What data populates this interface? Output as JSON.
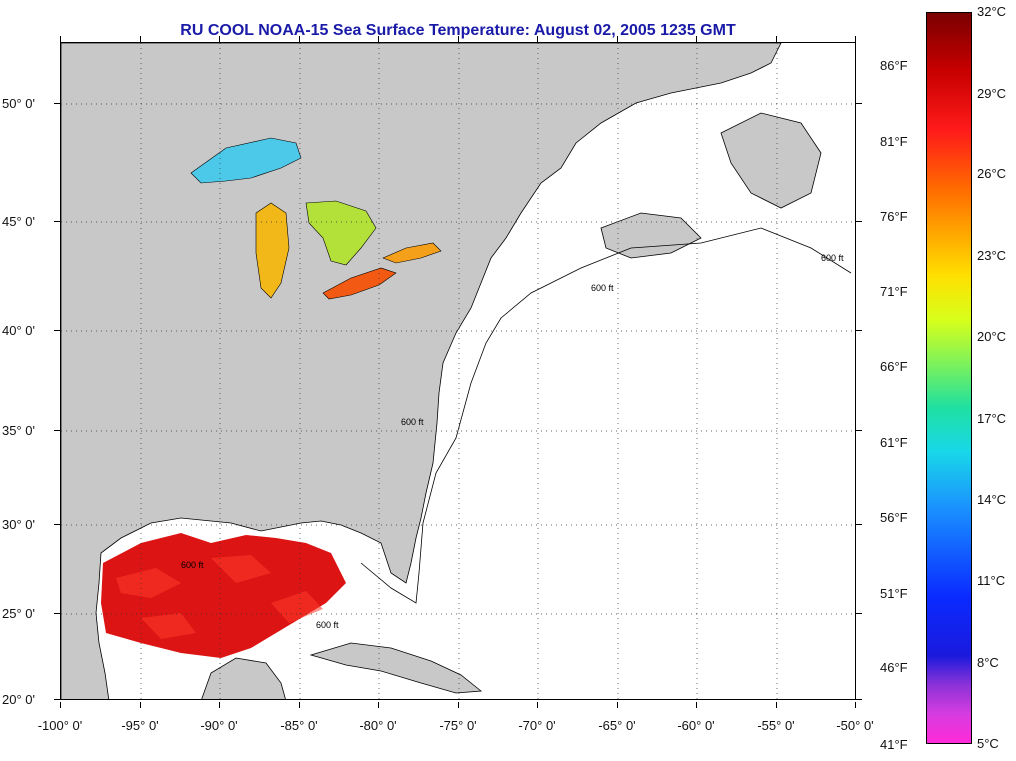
{
  "title": "RU COOL  NOAA-15  Sea Surface Temperature:  August 02, 2005 1235 GMT",
  "latitude_labels": [
    "50° 0'",
    "45° 0'",
    "40° 0'",
    "35° 0'",
    "30° 0'",
    "25° 0'",
    "20° 0'"
  ],
  "longitude_labels": [
    "-100° 0'",
    "-95° 0'",
    "-90° 0'",
    "-85° 0'",
    "-80° 0'",
    "-75° 0'",
    "-70° 0'",
    "-65° 0'",
    "-60° 0'",
    "-55° 0'",
    "-50° 0'"
  ],
  "colorbar": {
    "celsius_labels": [
      "32°C",
      "29°C",
      "26°C",
      "23°C",
      "20°C",
      "17°C",
      "14°C",
      "11°C",
      "8°C",
      "5°C"
    ],
    "fahrenheit_labels": [
      "86°F",
      "81°F",
      "76°F",
      "71°F",
      "66°F",
      "61°F",
      "56°F",
      "51°F",
      "46°F",
      "41°F"
    ],
    "colors": [
      "#7a0000",
      "#ff1a1a",
      "#ffa500",
      "#ffe000",
      "#7ef25a",
      "#19d8e8",
      "#1a90ff",
      "#0a2aff",
      "#8a32d8",
      "#ff2ad8"
    ]
  },
  "isobath_label": "600 ft",
  "land_color": "#c8c8c8",
  "ocean_color": "#ffffff"
}
